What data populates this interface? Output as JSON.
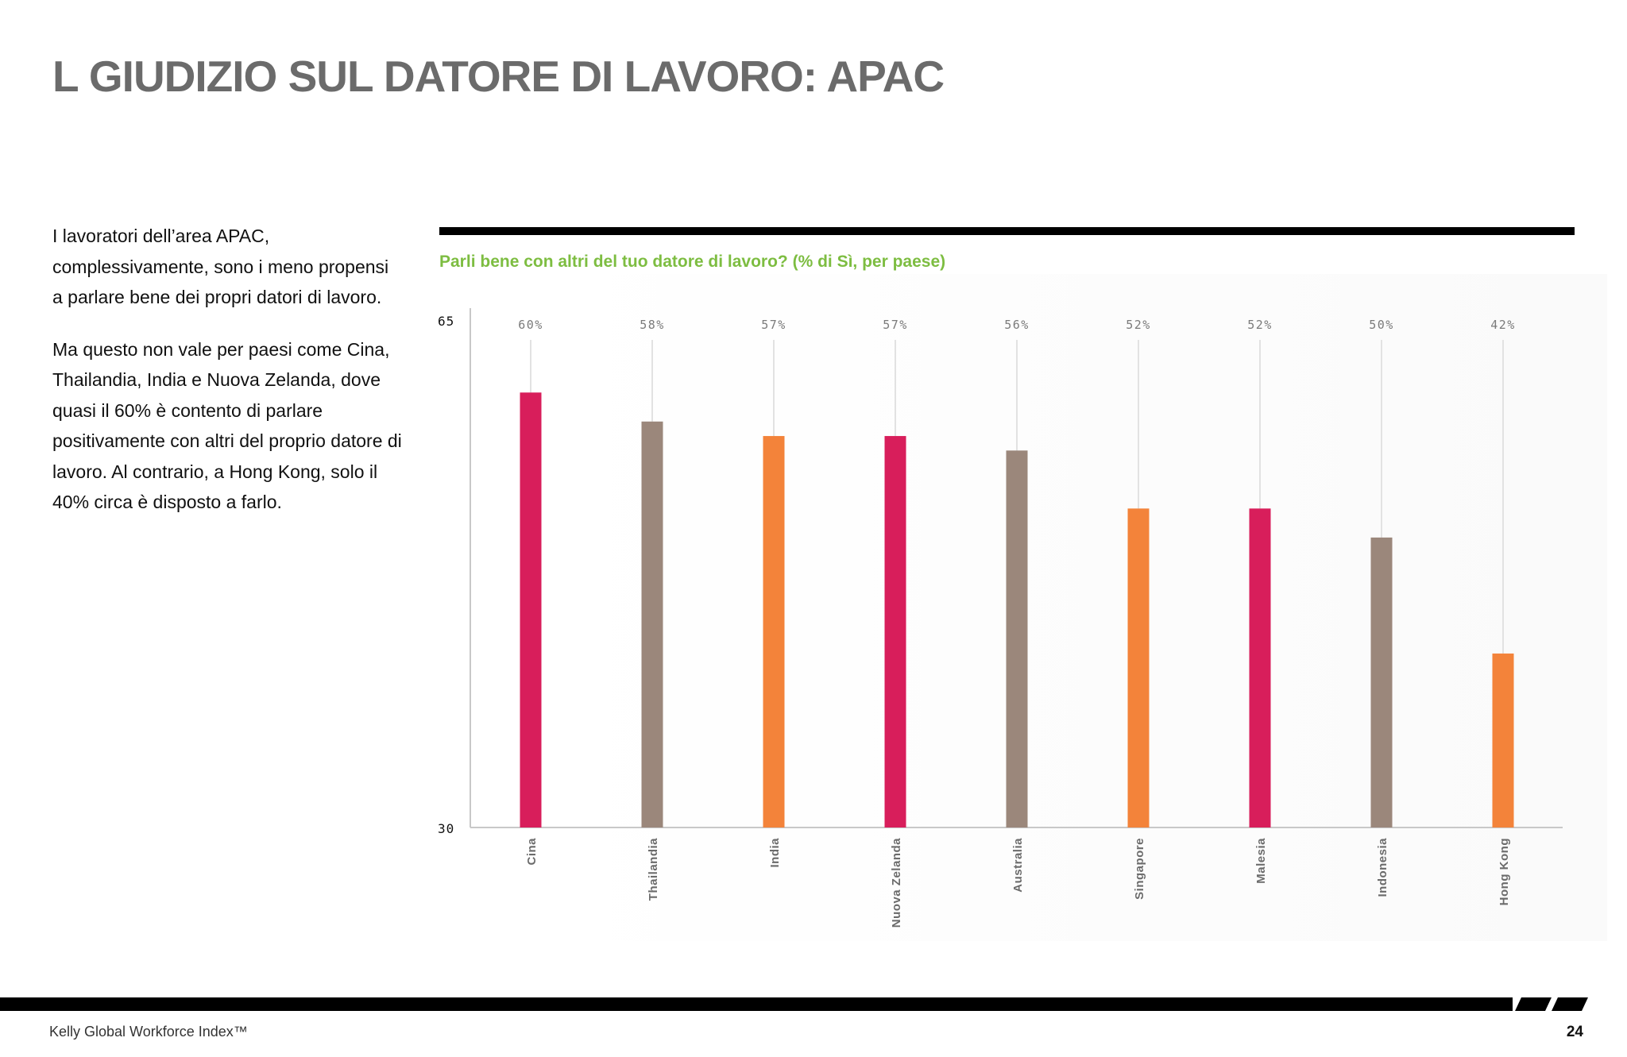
{
  "page": {
    "title": "L GIUDIZIO SUL DATORE DI LAVORO: APAC",
    "intro_p1": "I lavoratori dell’area APAC, complessivamente, sono i meno propensi a parlare bene dei propri datori di lavoro.",
    "intro_p2": "Ma questo non vale per paesi come Cina, Thailandia, India e Nuova Zelanda, dove quasi il 60% è contento di parlare positivamente con altri del proprio datore di lavoro. Al contrario, a Hong Kong, solo il 40% circa è disposto a farlo.",
    "footer_left": "Kelly Global Workforce Index™",
    "footer_page": "24"
  },
  "colors": {
    "magenta": "#d81e5b",
    "taupe": "#9b877b",
    "orange": "#f3833a",
    "title_green": "#7dbd41",
    "guide": "#d9d9d9",
    "axis": "#c8c8c8"
  },
  "chart_data": {
    "type": "bar",
    "title": "Parli bene con altri del tuo datore di lavoro? (% di Sì, per paese)",
    "categories": [
      "Cina",
      "Thailandia",
      "India",
      "Nuova Zelanda",
      "Australia",
      "Singapore",
      "Malesia",
      "Indonesia",
      "Hong Kong"
    ],
    "values": [
      60,
      58,
      57,
      57,
      56,
      52,
      52,
      50,
      42
    ],
    "value_labels": [
      "60%",
      "58%",
      "57%",
      "57%",
      "56%",
      "52%",
      "52%",
      "50%",
      "42%"
    ],
    "bar_colors": [
      "magenta",
      "taupe",
      "orange",
      "magenta",
      "taupe",
      "orange",
      "magenta",
      "taupe",
      "orange"
    ],
    "ylim": [
      30,
      65
    ],
    "yticks": [
      "65",
      "30"
    ],
    "xlabel": "",
    "ylabel": "",
    "grid": false,
    "legend": "none"
  }
}
